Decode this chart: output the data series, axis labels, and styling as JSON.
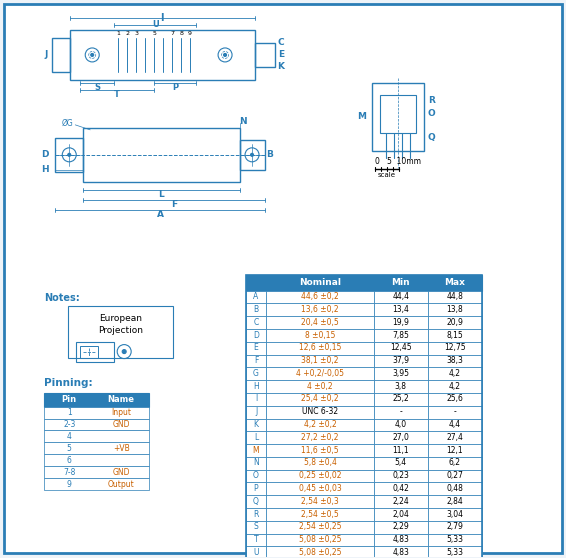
{
  "bg_color": "#eef3f8",
  "border_color": "#2a7db5",
  "table_header_color": "#2a7db5",
  "table_row_bg": "#ffffff",
  "table_label_color": "#2a7db5",
  "table_value_color": "#c86000",
  "drawing_color": "#2a7db5",
  "pinning_title": "Pinning:",
  "notes_title": "Notes:",
  "table_data": [
    [
      "A",
      "44,6 ±0,2",
      "44,4",
      "44,8"
    ],
    [
      "B",
      "13,6 ±0,2",
      "13,4",
      "13,8"
    ],
    [
      "C",
      "20,4 ±0,5",
      "19,9",
      "20,9"
    ],
    [
      "D",
      "8 ±0,15",
      "7,85",
      "8,15"
    ],
    [
      "E",
      "12,6 ±0,15",
      "12,45",
      "12,75"
    ],
    [
      "F",
      "38,1 ±0,2",
      "37,9",
      "38,3"
    ],
    [
      "G",
      "4 +0,2/-0,05",
      "3,95",
      "4,2"
    ],
    [
      "H",
      "4 ±0,2",
      "3,8",
      "4,2"
    ],
    [
      "I",
      "25,4 ±0,2",
      "25,2",
      "25,6"
    ],
    [
      "J",
      "UNC 6-32",
      "-",
      "-"
    ],
    [
      "K",
      "4,2 ±0,2",
      "4,0",
      "4,4"
    ],
    [
      "L",
      "27,2 ±0,2",
      "27,0",
      "27,4"
    ],
    [
      "M",
      "11,6 ±0,5",
      "11,1",
      "12,1"
    ],
    [
      "N",
      "5,8 ±0,4",
      "5,4",
      "6,2"
    ],
    [
      "O",
      "0,25 ±0,02",
      "0,23",
      "0,27"
    ],
    [
      "P",
      "0,45 ±0,03",
      "0,42",
      "0,48"
    ],
    [
      "Q",
      "2,54 ±0,3",
      "2,24",
      "2,84"
    ],
    [
      "R",
      "2,54 ±0,5",
      "2,04",
      "3,04"
    ],
    [
      "S",
      "2,54 ±0,25",
      "2,29",
      "2,79"
    ],
    [
      "T",
      "5,08 ±0,25",
      "4,83",
      "5,33"
    ],
    [
      "U",
      "5,08 ±0,25",
      "4,83",
      "5,33"
    ]
  ],
  "pinning_data": [
    [
      "1",
      "Input"
    ],
    [
      "2-3",
      "GND"
    ],
    [
      "4",
      ""
    ],
    [
      "5",
      "+VB"
    ],
    [
      "6",
      ""
    ],
    [
      "7-8",
      "GND"
    ],
    [
      "9",
      "Output"
    ]
  ],
  "col_headers": [
    "",
    "Nominal",
    "Min",
    "Max"
  ]
}
